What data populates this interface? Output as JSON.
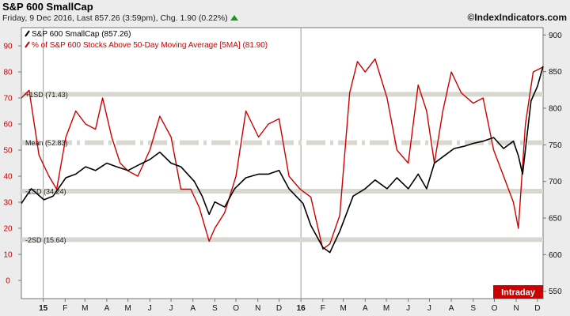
{
  "header": {
    "title": "S&P 600 SmallCap",
    "subtitle": "Friday, 9 Dec 2016, Last 857.26 (3:59pm), Chg. 1.90 (0.22%)",
    "copyright": "©IndexIndicators.com",
    "intraday_label": "Intraday"
  },
  "colors": {
    "price_line": "#000000",
    "pct_line": "#cc0000",
    "band": "#d8d8d0",
    "plot_bg": "#ffffff",
    "intraday_bg": "#cc0000",
    "up_arrow": "#1a9a1a"
  },
  "chart_data": {
    "type": "line",
    "legend": {
      "placement": "top-left",
      "entries": [
        "S&P 600 SmallCap (857.26)",
        "% of S&P 600 Stocks Above 50-Day Moving Average [5MA] (81.90)"
      ]
    },
    "x_ticks": [
      "15",
      "F",
      "M",
      "A",
      "M",
      "J",
      "J",
      "A",
      "S",
      "O",
      "N",
      "D",
      "16",
      "F",
      "M",
      "A",
      "M",
      "J",
      "J",
      "A",
      "S",
      "O",
      "N",
      "D"
    ],
    "x_range": [
      "2014-12-01",
      "2016-12-09"
    ],
    "left_axis": {
      "ticks": [
        0,
        10,
        20,
        30,
        40,
        50,
        60,
        70,
        80,
        90
      ],
      "range": [
        -7,
        97
      ]
    },
    "right_axis": {
      "ticks": [
        550,
        600,
        650,
        700,
        750,
        800,
        850,
        900
      ],
      "range": [
        540,
        910
      ]
    },
    "reference_lines": [
      {
        "label": "+1SD (71.43)",
        "value": 71.43
      },
      {
        "label": "Mean (52.83)",
        "value": 52.83
      },
      {
        "label": "-1SD (34.24)",
        "value": 34.24
      },
      {
        "label": "-2SD (15.64)",
        "value": 15.64
      }
    ],
    "series": [
      {
        "name": "S&P 600 SmallCap (857.26)",
        "axis": "right",
        "x": [
          "2014-12-01",
          "2014-12-15",
          "2015-01-02",
          "2015-01-15",
          "2015-02-02",
          "2015-02-16",
          "2015-03-02",
          "2015-03-16",
          "2015-04-01",
          "2015-04-15",
          "2015-05-01",
          "2015-05-15",
          "2015-06-01",
          "2015-06-15",
          "2015-07-01",
          "2015-07-15",
          "2015-08-03",
          "2015-08-14",
          "2015-08-24",
          "2015-09-01",
          "2015-09-15",
          "2015-09-29",
          "2015-10-15",
          "2015-11-02",
          "2015-11-16",
          "2015-12-01",
          "2015-12-15",
          "2016-01-04",
          "2016-01-15",
          "2016-02-01",
          "2016-02-11",
          "2016-02-25",
          "2016-03-15",
          "2016-04-01",
          "2016-04-15",
          "2016-05-02",
          "2016-05-16",
          "2016-06-01",
          "2016-06-15",
          "2016-06-27",
          "2016-07-08",
          "2016-07-22",
          "2016-08-05",
          "2016-08-19",
          "2016-09-01",
          "2016-09-15",
          "2016-09-30",
          "2016-10-14",
          "2016-10-28",
          "2016-11-04",
          "2016-11-10",
          "2016-11-22",
          "2016-12-01",
          "2016-12-09"
        ],
        "values": [
          670,
          690,
          675,
          680,
          705,
          710,
          720,
          715,
          725,
          720,
          715,
          722,
          730,
          740,
          725,
          720,
          700,
          680,
          655,
          672,
          665,
          690,
          705,
          710,
          710,
          715,
          690,
          670,
          640,
          610,
          603,
          632,
          680,
          690,
          702,
          690,
          705,
          690,
          710,
          690,
          725,
          735,
          745,
          748,
          752,
          755,
          760,
          745,
          755,
          735,
          710,
          810,
          830,
          857.26
        ]
      },
      {
        "name": "% of S&P 600 Stocks Above 50-Day Moving Average [5MA] (81.90)",
        "axis": "left",
        "x": [
          "2014-12-01",
          "2014-12-12",
          "2014-12-26",
          "2015-01-09",
          "2015-01-20",
          "2015-02-02",
          "2015-02-16",
          "2015-03-02",
          "2015-03-16",
          "2015-03-26",
          "2015-04-08",
          "2015-04-20",
          "2015-05-01",
          "2015-05-15",
          "2015-06-01",
          "2015-06-15",
          "2015-07-01",
          "2015-07-15",
          "2015-07-29",
          "2015-08-10",
          "2015-08-24",
          "2015-09-01",
          "2015-09-15",
          "2015-10-01",
          "2015-10-15",
          "2015-11-02",
          "2015-11-16",
          "2015-12-01",
          "2015-12-15",
          "2015-12-31",
          "2016-01-15",
          "2016-02-01",
          "2016-02-11",
          "2016-02-25",
          "2016-03-10",
          "2016-03-21",
          "2016-04-01",
          "2016-04-15",
          "2016-05-02",
          "2016-05-16",
          "2016-06-01",
          "2016-06-15",
          "2016-06-27",
          "2016-07-08",
          "2016-07-20",
          "2016-08-01",
          "2016-08-15",
          "2016-09-01",
          "2016-09-15",
          "2016-09-30",
          "2016-10-14",
          "2016-10-28",
          "2016-11-04",
          "2016-11-14",
          "2016-11-25",
          "2016-12-09"
        ],
        "values": [
          70,
          73,
          48,
          40,
          35,
          55,
          65,
          60,
          58,
          70,
          55,
          45,
          42,
          40,
          50,
          63,
          55,
          35,
          35,
          28,
          15,
          20,
          26,
          40,
          65,
          55,
          60,
          62,
          40,
          35,
          32,
          12,
          14,
          25,
          72,
          84,
          80,
          85,
          70,
          50,
          45,
          75,
          65,
          45,
          65,
          80,
          72,
          68,
          70,
          50,
          40,
          30,
          20,
          60,
          80,
          81.9
        ]
      }
    ]
  }
}
